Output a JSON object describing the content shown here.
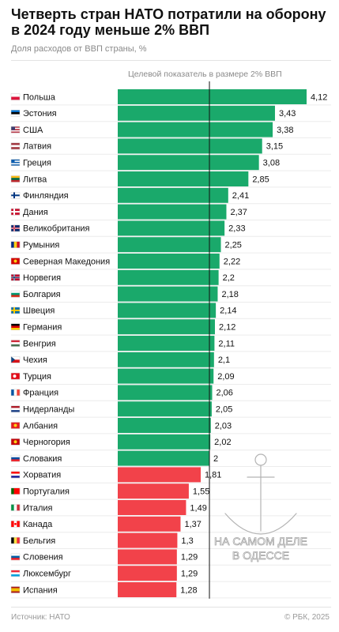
{
  "title": "Четверть стран НАТО потратили на оборону в 2024 году меньше 2% ВВП",
  "subtitle": "Доля расходов от ВВП страны, %",
  "target_label": "Целевой показатель в размере 2% ВВП",
  "source": "Источник: НАТО",
  "copyright": "© РБК, 2025",
  "watermark": {
    "line1": "НА САМОМ ДЕЛЕ",
    "line2": "В ОДЕССЕ"
  },
  "colors": {
    "above": "#1aa96b",
    "below": "#f2424a",
    "target_line": "#111111"
  },
  "chart_data": {
    "type": "bar",
    "orientation": "horizontal",
    "title": "Четверть стран НАТО потратили на оборону в 2024 году меньше 2% ВВП",
    "subtitle": "Доля расходов от ВВП страны, %",
    "reference_line": {
      "value": 2,
      "label": "Целевой показатель в размере 2% ВВП"
    },
    "xlim": [
      0,
      4.12
    ],
    "grid": false,
    "categories": [
      "Польша",
      "Эстония",
      "США",
      "Латвия",
      "Греция",
      "Литва",
      "Финляндия",
      "Дания",
      "Великобритания",
      "Румыния",
      "Северная Македония",
      "Норвегия",
      "Болгария",
      "Швеция",
      "Германия",
      "Венгрия",
      "Чехия",
      "Турция",
      "Франция",
      "Нидерланды",
      "Албания",
      "Черногория",
      "Словакия",
      "Хорватия",
      "Португалия",
      "Италия",
      "Канада",
      "Бельгия",
      "Словения",
      "Люксембург",
      "Испания"
    ],
    "values": [
      4.12,
      3.43,
      3.38,
      3.15,
      3.08,
      2.85,
      2.41,
      2.37,
      2.33,
      2.25,
      2.22,
      2.2,
      2.18,
      2.14,
      2.12,
      2.11,
      2.1,
      2.09,
      2.06,
      2.05,
      2.03,
      2.02,
      2,
      1.81,
      1.55,
      1.49,
      1.37,
      1.3,
      1.29,
      1.29,
      1.28
    ],
    "value_labels": [
      "4,12",
      "3,43",
      "3,38",
      "3,15",
      "3,08",
      "2,85",
      "2,41",
      "2,37",
      "2,33",
      "2,25",
      "2,22",
      "2,2",
      "2,18",
      "2,14",
      "2,12",
      "2,11",
      "2,1",
      "2,09",
      "2,06",
      "2,05",
      "2,03",
      "2,02",
      "2",
      "1,81",
      "1,55",
      "1,49",
      "1,37",
      "1,3",
      "1,29",
      "1,29",
      "1,28"
    ],
    "flags": [
      "pl",
      "ee",
      "us",
      "lv",
      "gr",
      "lt",
      "fi",
      "dk",
      "gb",
      "ro",
      "mk",
      "no",
      "bg",
      "se",
      "de",
      "hu",
      "cz",
      "tr",
      "fr",
      "nl",
      "al",
      "me",
      "sk",
      "hr",
      "pt",
      "it",
      "ca",
      "be",
      "si",
      "lu",
      "es"
    ]
  }
}
